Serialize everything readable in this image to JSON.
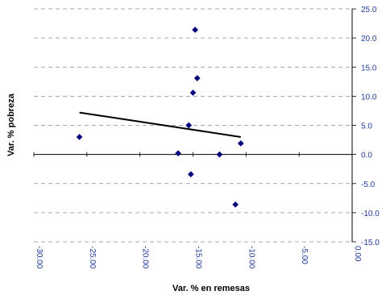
{
  "chart_data": {
    "type": "scatter",
    "title": "",
    "xlabel": "Var. % en remesas",
    "ylabel": "Var. % pobreza",
    "xlim": [
      -30,
      0
    ],
    "ylim": [
      -15,
      25
    ],
    "x_ticks": [
      -30,
      -25,
      -20,
      -15,
      -10,
      -5,
      0
    ],
    "x_tick_labels": [
      "-30.00",
      "-25.00",
      "-20.00",
      "-15.00",
      "-10.00",
      "-5.00",
      "0.00"
    ],
    "y_ticks": [
      25,
      20,
      15,
      10,
      5,
      0,
      -5,
      -10,
      -15
    ],
    "y_tick_labels": [
      "25.0",
      "20.0",
      "15.0",
      "10.0",
      "5.0",
      "0.0",
      "-5.0",
      "-10.0",
      "-15.0"
    ],
    "y_axis_position": "right",
    "grid": "horizontal dashed",
    "legend": "none",
    "series": [
      {
        "marker": "diamond",
        "color": "#00007a",
        "points": [
          {
            "x": -25.7,
            "y": 3.0
          },
          {
            "x": -16.4,
            "y": 0.2
          },
          {
            "x": -15.4,
            "y": 5.0
          },
          {
            "x": -15.2,
            "y": -3.4
          },
          {
            "x": -15.0,
            "y": 10.6
          },
          {
            "x": -14.8,
            "y": 21.4
          },
          {
            "x": -14.6,
            "y": 13.1
          },
          {
            "x": -12.5,
            "y": 0.0
          },
          {
            "x": -11.0,
            "y": -8.6
          },
          {
            "x": -10.5,
            "y": 1.9
          }
        ]
      }
    ],
    "trendline": {
      "color": "#000000",
      "x": [
        -25.7,
        -10.5
      ],
      "y": [
        7.2,
        3.0
      ]
    }
  }
}
